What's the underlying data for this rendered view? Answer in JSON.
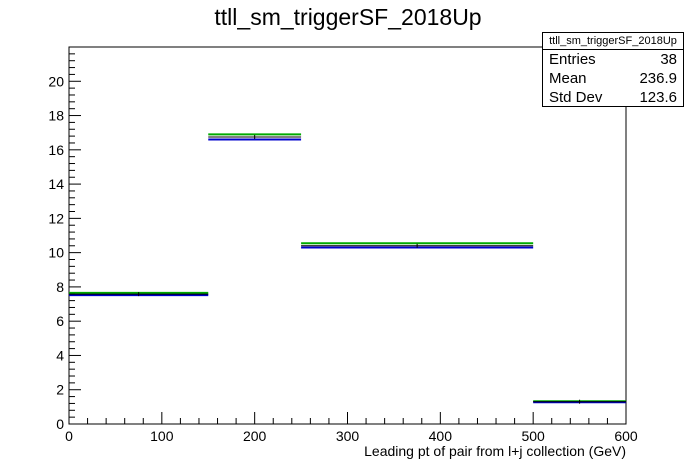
{
  "chart_data": {
    "type": "histogram",
    "title": "ttll_sm_triggerSF_2018Up",
    "xlabel": "Leading pt of pair from l+j collection (GeV)",
    "ylabel": "",
    "xlim": [
      0,
      600
    ],
    "ylim": [
      0,
      22
    ],
    "xticks": [
      0,
      100,
      200,
      300,
      400,
      500,
      600
    ],
    "yticks": [
      0,
      2,
      4,
      6,
      8,
      10,
      12,
      14,
      16,
      18,
      20
    ],
    "grid": false,
    "bins": [
      {
        "x0": 0,
        "x1": 150,
        "nominal": 7.58,
        "up": 7.65,
        "down": 7.52
      },
      {
        "x0": 150,
        "x1": 250,
        "nominal": 16.75,
        "up": 16.9,
        "down": 16.6
      },
      {
        "x0": 250,
        "x1": 500,
        "nominal": 10.4,
        "up": 10.55,
        "down": 10.3
      },
      {
        "x0": 500,
        "x1": 600,
        "nominal": 1.3,
        "up": 1.33,
        "down": 1.27
      }
    ],
    "series_colors": {
      "nominal": "#000000",
      "up": "#00aa00",
      "down": "#0000cc"
    },
    "stats": {
      "title": "ttll_sm_triggerSF_2018Up",
      "entries_label": "Entries",
      "entries": "38",
      "mean_label": "Mean",
      "mean": "236.9",
      "std_label": "Std Dev",
      "std": "123.6"
    }
  }
}
